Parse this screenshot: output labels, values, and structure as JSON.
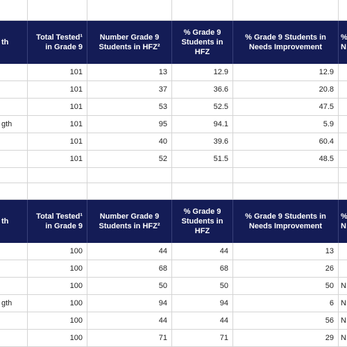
{
  "columns": {
    "col0": "th",
    "col1": "Total Tested¹ in Grade 9",
    "col2": "Number Grade 9 Students in HFZ²",
    "col3": "% Grade 9 Students in HFZ",
    "col4": "% Grade 9 Students in Needs Improvement",
    "col5": "% N"
  },
  "table1": {
    "rows": [
      {
        "label": "",
        "total": "101",
        "number": "13",
        "pct_hfz": "12.9",
        "pct_ni": "12.9",
        "extra": ""
      },
      {
        "label": "",
        "total": "101",
        "number": "37",
        "pct_hfz": "36.6",
        "pct_ni": "20.8",
        "extra": ""
      },
      {
        "label": "",
        "total": "101",
        "number": "53",
        "pct_hfz": "52.5",
        "pct_ni": "47.5",
        "extra": ""
      },
      {
        "label": "gth",
        "total": "101",
        "number": "95",
        "pct_hfz": "94.1",
        "pct_ni": "5.9",
        "extra": ""
      },
      {
        "label": "",
        "total": "101",
        "number": "40",
        "pct_hfz": "39.6",
        "pct_ni": "60.4",
        "extra": ""
      },
      {
        "label": "",
        "total": "101",
        "number": "52",
        "pct_hfz": "51.5",
        "pct_ni": "48.5",
        "extra": ""
      }
    ]
  },
  "table2": {
    "rows": [
      {
        "label": "",
        "total": "100",
        "number": "44",
        "pct_hfz": "44",
        "pct_ni": "13",
        "extra": ""
      },
      {
        "label": "",
        "total": "100",
        "number": "68",
        "pct_hfz": "68",
        "pct_ni": "26",
        "extra": ""
      },
      {
        "label": "",
        "total": "100",
        "number": "50",
        "pct_hfz": "50",
        "pct_ni": "50",
        "extra": "N"
      },
      {
        "label": "gth",
        "total": "100",
        "number": "94",
        "pct_hfz": "94",
        "pct_ni": "6",
        "extra": "N"
      },
      {
        "label": "",
        "total": "100",
        "number": "44",
        "pct_hfz": "44",
        "pct_ni": "56",
        "extra": "N"
      },
      {
        "label": "",
        "total": "100",
        "number": "71",
        "pct_hfz": "71",
        "pct_ni": "29",
        "extra": "N"
      }
    ]
  }
}
